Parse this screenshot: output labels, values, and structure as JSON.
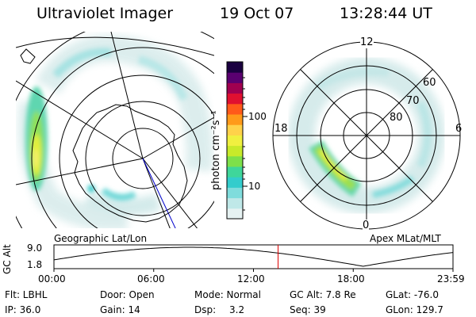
{
  "header": {
    "title": "Ultraviolet Imager",
    "date": "19 Oct 07",
    "time": "13:28:44 UT"
  },
  "left_panel": {
    "label": "Geographic Lat/Lon"
  },
  "right_panel": {
    "label": "Apex MLat/MLT",
    "mlt_labels": [
      "12",
      "18",
      "6",
      "0"
    ],
    "mlat_labels": [
      "60",
      "70",
      "80"
    ]
  },
  "colorbar": {
    "unit": "photon cm⁻²s⁻¹",
    "ticks": [
      "100",
      "10"
    ],
    "colors": [
      "#e6f2f2",
      "#bfe8e8",
      "#7fdcdc",
      "#33cccc",
      "#3fd69a",
      "#7ee04a",
      "#c8ea2a",
      "#f0f040",
      "#ffd24a",
      "#ff9a1a",
      "#ff5a1a",
      "#e01030",
      "#a00050",
      "#5a0070",
      "#1a0040"
    ]
  },
  "altitude_plot": {
    "ylabel": "GC Alt",
    "y_ticks": [
      "9.0",
      "1.8"
    ],
    "x_ticks": [
      "00:00",
      "06:00",
      "12:00",
      "18:00",
      "23:59"
    ],
    "current_time_hours": 13.48
  },
  "info": {
    "filter": "Flt: LBHL",
    "door": "Door: Open",
    "mode": "Mode: Normal",
    "gc_alt": "GC Alt: 7.8 Re",
    "glat": "GLat: -76.0",
    "ip": "IP: 36.0",
    "gain": "Gain: 14",
    "dsp_label": "Dsp:",
    "dsp_value": "3.2",
    "seq": "Seq: 39",
    "glon": "GLon: 129.7"
  }
}
